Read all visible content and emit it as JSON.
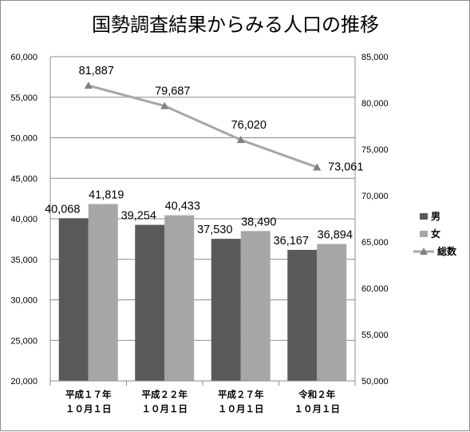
{
  "chart_data": {
    "type": "bar",
    "title": "国勢調査結果からみる人口の推移",
    "categories": [
      [
        "平成１７年",
        "１０月１日"
      ],
      [
        "平成２２年",
        "１０月１日"
      ],
      [
        "平成２７年",
        "１０月１日"
      ],
      [
        "令和２年",
        "１０月１日"
      ]
    ],
    "series": [
      {
        "name": "男",
        "type": "bar",
        "axis": "left",
        "color": "#595959",
        "values": [
          40068,
          39254,
          37530,
          36167
        ],
        "labels": [
          "40,068",
          "39,254",
          "37,530",
          "36,167"
        ]
      },
      {
        "name": "女",
        "type": "bar",
        "axis": "left",
        "color": "#a6a6a6",
        "values": [
          41819,
          40433,
          38490,
          36894
        ],
        "labels": [
          "41,819",
          "40,433",
          "38,490",
          "36,894"
        ]
      },
      {
        "name": "総数",
        "type": "line",
        "axis": "right",
        "color": "#a6a6a6",
        "marker_color": "#808080",
        "marker": "triangle",
        "values": [
          81887,
          79687,
          76020,
          73061
        ],
        "labels": [
          "81,887",
          "79,687",
          "76,020",
          "73,061"
        ]
      }
    ],
    "y_left": {
      "min": 20000,
      "max": 60000,
      "step": 5000,
      "ticks": [
        "20,000",
        "25,000",
        "30,000",
        "35,000",
        "40,000",
        "45,000",
        "50,000",
        "55,000",
        "60,000"
      ]
    },
    "y_right": {
      "min": 50000,
      "max": 85000,
      "step": 5000,
      "ticks": [
        "50,000",
        "55,000",
        "60,000",
        "65,000",
        "70,000",
        "75,000",
        "80,000",
        "85,000"
      ]
    },
    "grid": true,
    "legend": "right"
  }
}
